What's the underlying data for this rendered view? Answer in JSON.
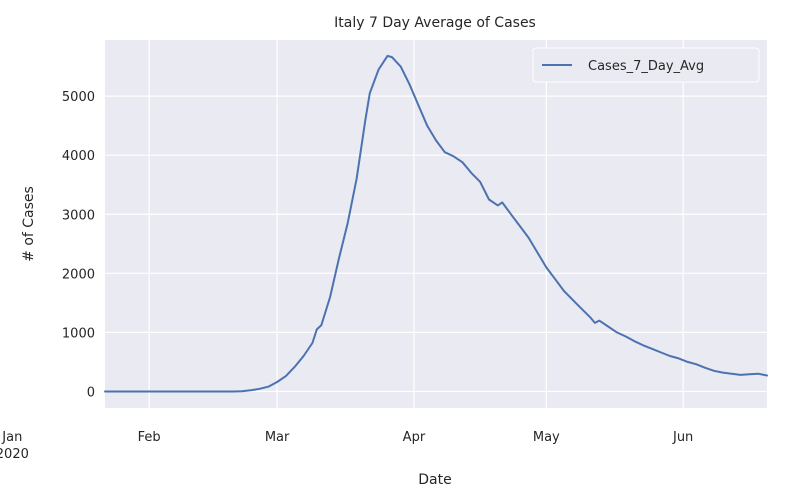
{
  "chart_data": {
    "type": "line",
    "title": "Italy 7 Day Average of Cases",
    "xlabel": "Date",
    "ylabel": "# of Cases",
    "x_tick_labels": [
      "Jan\n2020",
      "Feb",
      "Mar",
      "Apr",
      "May",
      "Jun"
    ],
    "y_ticks": [
      0,
      1000,
      2000,
      3000,
      4000,
      5000
    ],
    "ylim": [
      -280,
      5950
    ],
    "xlim": [
      "2020-01-22",
      "2020-06-20"
    ],
    "grid": true,
    "legend_position": "top-right",
    "colors": {
      "plot_bg": "#eaeaf2",
      "grid": "#ffffff",
      "line": "#4c72b0",
      "legend_bg": "#eaeaf2"
    },
    "series": [
      {
        "name": "Cases_7_Day_Avg",
        "points": [
          [
            "2020-01-22",
            0
          ],
          [
            "2020-02-15",
            0
          ],
          [
            "2020-02-20",
            0
          ],
          [
            "2020-02-22",
            3
          ],
          [
            "2020-02-24",
            20
          ],
          [
            "2020-02-26",
            45
          ],
          [
            "2020-02-28",
            80
          ],
          [
            "2020-03-01",
            160
          ],
          [
            "2020-03-03",
            260
          ],
          [
            "2020-03-05",
            420
          ],
          [
            "2020-03-07",
            600
          ],
          [
            "2020-03-09",
            820
          ],
          [
            "2020-03-10",
            1050
          ],
          [
            "2020-03-11",
            1120
          ],
          [
            "2020-03-13",
            1600
          ],
          [
            "2020-03-15",
            2250
          ],
          [
            "2020-03-17",
            2850
          ],
          [
            "2020-03-19",
            3600
          ],
          [
            "2020-03-21",
            4600
          ],
          [
            "2020-03-22",
            5050
          ],
          [
            "2020-03-24",
            5450
          ],
          [
            "2020-03-26",
            5680
          ],
          [
            "2020-03-27",
            5660
          ],
          [
            "2020-03-29",
            5500
          ],
          [
            "2020-03-31",
            5200
          ],
          [
            "2020-04-02",
            4850
          ],
          [
            "2020-04-04",
            4500
          ],
          [
            "2020-04-06",
            4250
          ],
          [
            "2020-04-08",
            4050
          ],
          [
            "2020-04-10",
            3980
          ],
          [
            "2020-04-12",
            3880
          ],
          [
            "2020-04-14",
            3700
          ],
          [
            "2020-04-16",
            3550
          ],
          [
            "2020-04-18",
            3250
          ],
          [
            "2020-04-20",
            3150
          ],
          [
            "2020-04-21",
            3200
          ],
          [
            "2020-04-23",
            3000
          ],
          [
            "2020-04-25",
            2800
          ],
          [
            "2020-04-27",
            2600
          ],
          [
            "2020-04-29",
            2350
          ],
          [
            "2020-05-01",
            2100
          ],
          [
            "2020-05-03",
            1900
          ],
          [
            "2020-05-05",
            1700
          ],
          [
            "2020-05-07",
            1550
          ],
          [
            "2020-05-09",
            1400
          ],
          [
            "2020-05-11",
            1250
          ],
          [
            "2020-05-12",
            1160
          ],
          [
            "2020-05-13",
            1200
          ],
          [
            "2020-05-15",
            1100
          ],
          [
            "2020-05-17",
            1000
          ],
          [
            "2020-05-19",
            930
          ],
          [
            "2020-05-21",
            850
          ],
          [
            "2020-05-23",
            780
          ],
          [
            "2020-05-25",
            720
          ],
          [
            "2020-05-27",
            660
          ],
          [
            "2020-05-29",
            600
          ],
          [
            "2020-05-31",
            560
          ],
          [
            "2020-06-02",
            500
          ],
          [
            "2020-06-04",
            460
          ],
          [
            "2020-06-06",
            400
          ],
          [
            "2020-06-08",
            350
          ],
          [
            "2020-06-10",
            320
          ],
          [
            "2020-06-12",
            300
          ],
          [
            "2020-06-14",
            280
          ],
          [
            "2020-06-16",
            290
          ],
          [
            "2020-06-18",
            300
          ],
          [
            "2020-06-20",
            270
          ]
        ]
      }
    ]
  }
}
